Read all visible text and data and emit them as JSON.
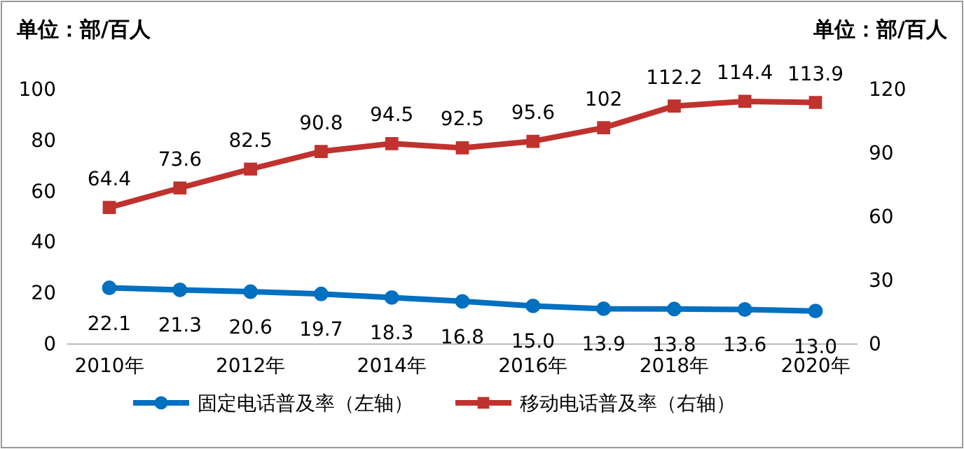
{
  "chart_data": {
    "type": "line",
    "ylabel": "单位：部/百人",
    "y2label": "单位：部/百人",
    "categories": [
      "2010年",
      null,
      "2012年",
      null,
      "2014年",
      null,
      "2016年",
      null,
      "2018年",
      null,
      "2020年"
    ],
    "series": [
      {
        "name": "固定电话普及率（左轴）",
        "color": "#0070c0",
        "marker": "circle",
        "values": [
          22.1,
          21.3,
          20.6,
          19.7,
          18.3,
          16.8,
          15.0,
          13.9,
          13.8,
          13.6,
          13.0
        ],
        "value_labels": [
          "22.1",
          "21.3",
          "20.6",
          "19.7",
          "18.3",
          "16.8",
          "15.0",
          "13.9",
          "13.8",
          "13.6",
          "13.0"
        ]
      },
      {
        "name": "移动电话普及率（右轴）",
        "color": "#c0322e",
        "marker": "square",
        "axis": "y2",
        "values": [
          64.4,
          73.6,
          82.5,
          90.8,
          94.5,
          92.5,
          95.6,
          102,
          112.2,
          114.4,
          113.9
        ],
        "value_labels": [
          "64.4",
          "73.6",
          "82.5",
          "90.8",
          "94.5",
          "92.5",
          "95.6",
          "102",
          "112.2",
          "114.4",
          "113.9"
        ]
      }
    ],
    "ylim": [
      0,
      100
    ],
    "yticks": [
      0,
      20,
      40,
      60,
      80,
      100
    ],
    "y2lim": [
      0,
      120
    ],
    "y2ticks": [
      0,
      30,
      60,
      90,
      120
    ],
    "legend": "bottom",
    "line_style": "solid"
  }
}
